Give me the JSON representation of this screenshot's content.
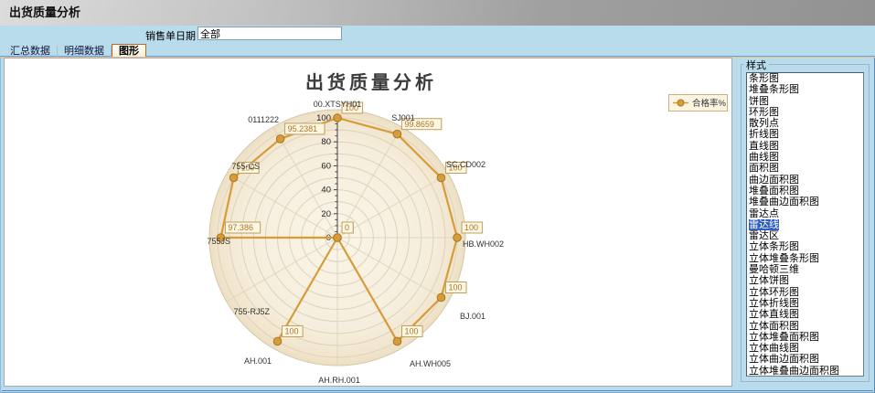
{
  "window": {
    "title": "出货质量分析"
  },
  "filter": {
    "label": "销售单日期",
    "value": "全部"
  },
  "tabs": {
    "items": [
      {
        "label": "汇总数据",
        "selected": false
      },
      {
        "label": "明细数据",
        "selected": false
      },
      {
        "label": "图形",
        "selected": true
      }
    ]
  },
  "chart_data": {
    "type": "radar-line",
    "title": "出货质量分析",
    "categories": [
      "00.XTSYH01",
      "SJ001",
      "SC.CD002",
      "HB.WH002",
      "BJ.001",
      "AH.WH005",
      "AH.RH.001",
      "AH.001",
      "755-RJ5Z",
      "755JS",
      "755-CS",
      "0111222"
    ],
    "series": [
      {
        "name": "合格率%",
        "values": [
          100,
          99.8659,
          100,
          100,
          100,
          100,
          0,
          100,
          0,
          97.386,
          100,
          95.2381
        ]
      }
    ],
    "axis": {
      "min": 0,
      "max": 100,
      "major_ticks": [
        0,
        20,
        40,
        60,
        80,
        100
      ],
      "minor_step": 5
    },
    "grid": {
      "rings_every": 10,
      "spokes_every_deg": 30
    },
    "legend_position": "top-right",
    "colors": {
      "line": "#d79b3a",
      "marker": "#d79b3a",
      "marker_edge": "#a8781f",
      "label_box_bg": "#fdf6e0",
      "label_box_border": "#bda05e",
      "label_text": "#a9742f",
      "disc_inner": "#faf5e8",
      "disc_outer": "#ecdfc3",
      "grid_line": "#ddd2bc",
      "axis_line": "#444444",
      "category_text": "#333333",
      "title_text": "#3b3b3b",
      "legend_bg": "#fbf4e1",
      "legend_border": "#c9b183",
      "selection": "#2e5ec6"
    }
  },
  "style_panel": {
    "title": "样式",
    "selected": "雷达线",
    "options": [
      "条形图",
      "堆叠条形图",
      "饼图",
      "环形图",
      "散列点",
      "折线图",
      "直线图",
      "曲线图",
      "面积图",
      "曲边面积图",
      "堆叠面积图",
      "堆叠曲边面积图",
      "雷达点",
      "雷达线",
      "雷达区",
      "立体条形图",
      "立体堆叠条形图",
      "曼哈顿三维",
      "立体饼图",
      "立体环形图",
      "立体折线图",
      "立体直线图",
      "立体面积图",
      "立体堆叠面积图",
      "立体曲线图",
      "立体曲边面积图",
      "立体堆叠曲边面积图"
    ]
  }
}
